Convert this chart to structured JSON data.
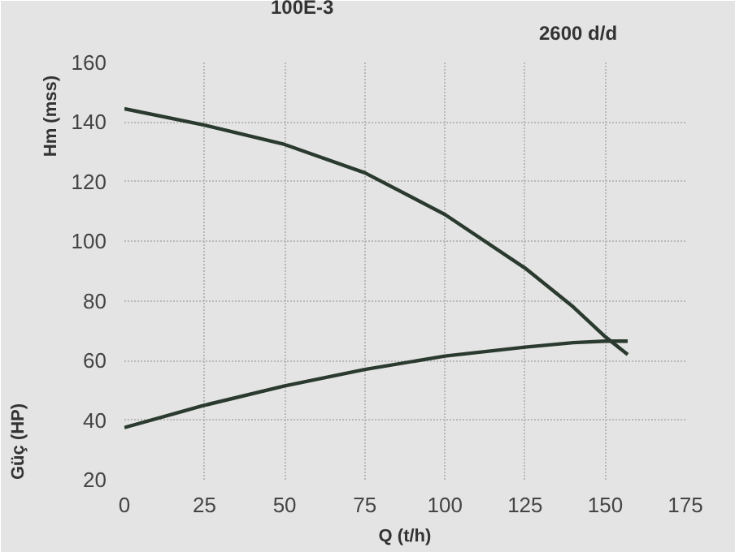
{
  "chart_data": {
    "type": "line",
    "title": "100E-3",
    "subtitle": "2600 d/d",
    "xlabel": "Q (t/h)",
    "ylabel": "Hm (mss)",
    "annotations": [
      "Güç (HP)"
    ],
    "x": [
      0,
      25,
      50,
      75,
      100,
      125,
      140,
      150,
      157
    ],
    "series": [
      {
        "color": "#2b3a2f",
        "values": [
          144.5,
          139,
          132.5,
          123,
          109,
          91,
          78,
          68,
          62
        ]
      },
      {
        "color": "#2b3a2f",
        "values": [
          37.5,
          45,
          51.5,
          57,
          61.5,
          64.5,
          66,
          66.5,
          66.5
        ]
      }
    ],
    "xlim": [
      0,
      175
    ],
    "xticks": [
      0,
      25,
      50,
      75,
      100,
      125,
      150,
      175
    ],
    "ylim": [
      20,
      160
    ],
    "yticks": [
      20,
      40,
      60,
      80,
      100,
      120,
      140,
      160
    ],
    "grid": true,
    "marker": "none",
    "line_style": "solid"
  }
}
